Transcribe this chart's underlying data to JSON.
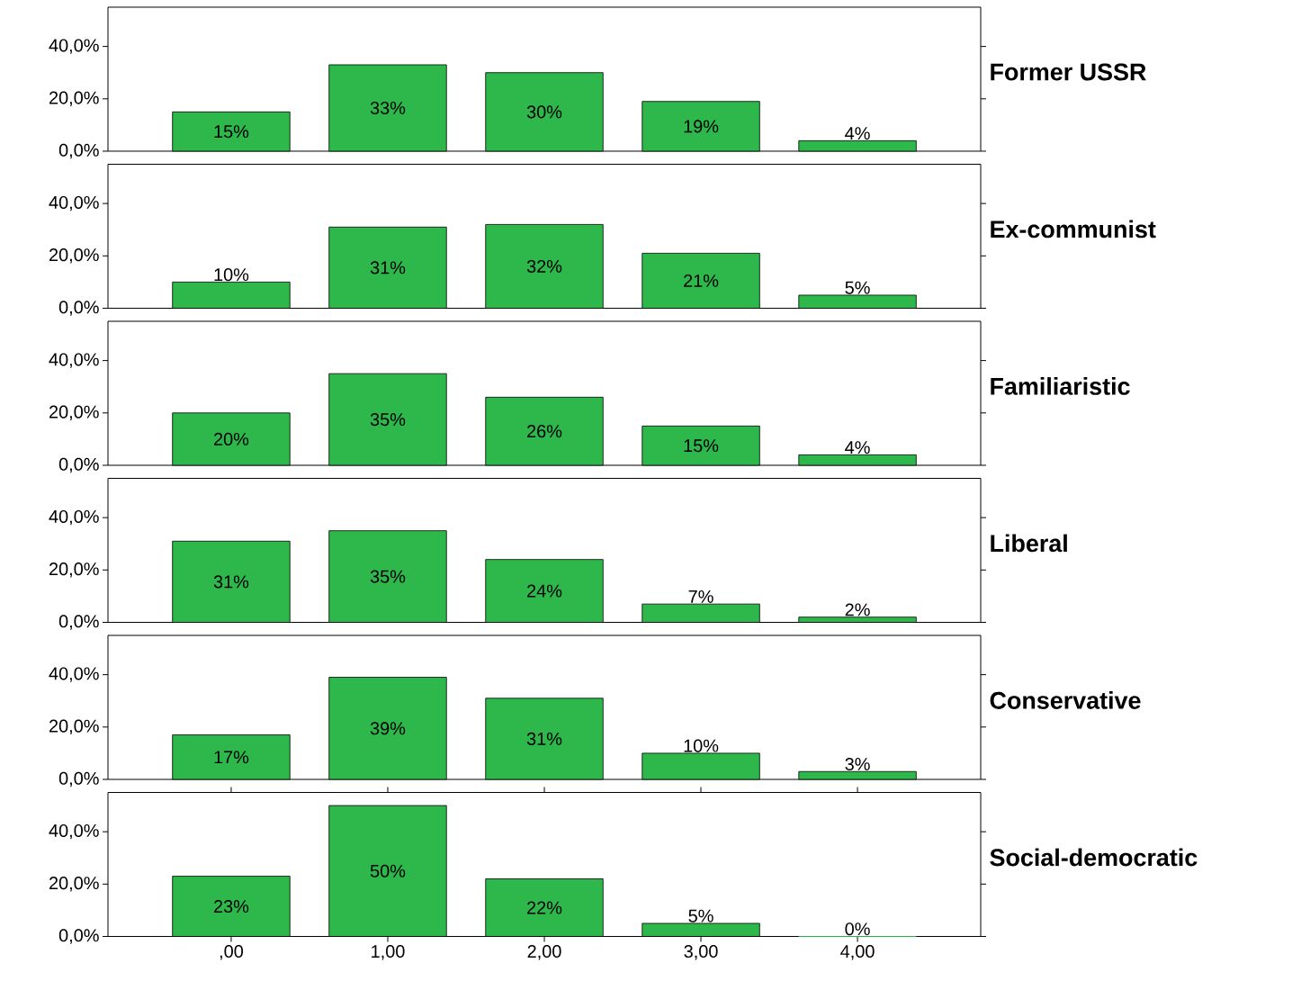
{
  "chart_data": [
    {
      "type": "bar",
      "title": "Former USSR",
      "categories": [
        ",00",
        "1,00",
        "2,00",
        "3,00",
        "4,00"
      ],
      "values": [
        15,
        33,
        30,
        19,
        4
      ],
      "value_labels": [
        "15%",
        "33%",
        "30%",
        "19%",
        "4%"
      ],
      "color": "#2eb84c",
      "ylim": [
        0,
        55
      ],
      "yticks": [
        {
          "value": 0,
          "label": "0,0%"
        },
        {
          "value": 20,
          "label": "20,0%"
        },
        {
          "value": 40,
          "label": "40,0%"
        }
      ],
      "tick_labels": "y"
    },
    {
      "type": "bar",
      "title": "Ex-communist",
      "categories": [
        ",00",
        "1,00",
        "2,00",
        "3,00",
        "4,00"
      ],
      "values": [
        10,
        31,
        32,
        21,
        5
      ],
      "value_labels": [
        "10%",
        "31%",
        "32%",
        "21%",
        "5%"
      ],
      "color": "#2eb84c",
      "ylim": [
        0,
        55
      ],
      "yticks": [
        {
          "value": 0,
          "label": "0,0%"
        },
        {
          "value": 20,
          "label": "20,0%"
        },
        {
          "value": 40,
          "label": "40,0%"
        }
      ],
      "tick_labels": "y"
    },
    {
      "type": "bar",
      "title": "Familiaristic",
      "categories": [
        ",00",
        "1,00",
        "2,00",
        "3,00",
        "4,00"
      ],
      "values": [
        20,
        35,
        26,
        15,
        4
      ],
      "value_labels": [
        "20%",
        "35%",
        "26%",
        "15%",
        "4%"
      ],
      "color": "#2eb84c",
      "ylim": [
        0,
        55
      ],
      "yticks": [
        {
          "value": 0,
          "label": "0,0%"
        },
        {
          "value": 20,
          "label": "20,0%"
        },
        {
          "value": 40,
          "label": "40,0%"
        }
      ],
      "tick_labels": "y"
    },
    {
      "type": "bar",
      "title": "Liberal",
      "categories": [
        ",00",
        "1,00",
        "2,00",
        "3,00",
        "4,00"
      ],
      "values": [
        31,
        35,
        24,
        7,
        2
      ],
      "value_labels": [
        "31%",
        "35%",
        "24%",
        "7%",
        "2%"
      ],
      "color": "#2eb84c",
      "ylim": [
        0,
        55
      ],
      "yticks": [
        {
          "value": 0,
          "label": "0,0%"
        },
        {
          "value": 20,
          "label": "20,0%"
        },
        {
          "value": 40,
          "label": "40,0%"
        }
      ],
      "tick_labels": "y"
    },
    {
      "type": "bar",
      "title": "Conservative",
      "categories": [
        ",00",
        "1,00",
        "2,00",
        "3,00",
        "4,00"
      ],
      "values": [
        17,
        39,
        31,
        10,
        3
      ],
      "value_labels": [
        "17%",
        "39%",
        "31%",
        "10%",
        "3%"
      ],
      "color": "#2eb84c",
      "ylim": [
        0,
        55
      ],
      "yticks": [
        {
          "value": 0,
          "label": "0,0%"
        },
        {
          "value": 20,
          "label": "20,0%"
        },
        {
          "value": 40,
          "label": "40,0%"
        }
      ],
      "tick_labels": "y"
    },
    {
      "type": "bar",
      "title": "Social-democratic",
      "categories": [
        ",00",
        "1,00",
        "2,00",
        "3,00",
        "4,00"
      ],
      "values": [
        23,
        50,
        22,
        5,
        0
      ],
      "value_labels": [
        "23%",
        "50%",
        "22%",
        "5%",
        "0%"
      ],
      "color": "#2eb84c",
      "ylim": [
        0,
        55
      ],
      "yticks": [
        {
          "value": 0,
          "label": "0,0%"
        },
        {
          "value": 20,
          "label": "20,0%"
        },
        {
          "value": 40,
          "label": "40,0%"
        }
      ]
    }
  ]
}
